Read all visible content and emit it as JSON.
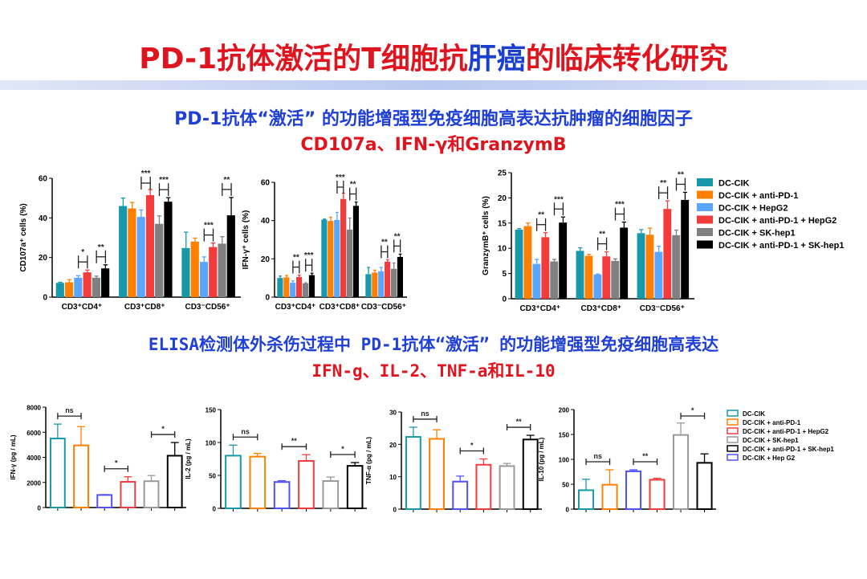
{
  "title": {
    "part1": "PD-1抗体激活的T细胞抗",
    "part2": "肝癌",
    "part3": "的临床转化研究"
  },
  "subtitle1": "PD-1抗体“激活” 的功能增强型免疫细胞高表达抗肿瘤的细胞因子",
  "subtitle2": "CD107a、IFN-γ和GranzymB",
  "subtitle3": "ELISA检测体外杀伤过程中 PD-1抗体“激活” 的功能增强型免疫细胞高表达",
  "subtitle4": "IFN-g、IL-2、TNF-a和IL-10",
  "colors": {
    "teal": "#1a98ab",
    "orange": "#ff8000",
    "lightblue": "#5aa6ff",
    "red": "#f23c3c",
    "gray": "#808080",
    "black": "#000000",
    "blue": "#5050ff"
  },
  "chart_data": [
    {
      "type": "bar",
      "ylabel": "CD107a⁺ cells (%)",
      "ylim": [
        0,
        60
      ],
      "yticks": [
        0,
        20,
        40,
        60
      ],
      "categories": [
        "CD3⁺CD4⁺",
        "CD3⁺CD8⁺",
        "CD3⁻CD56⁺"
      ],
      "style": "filled",
      "series": [
        {
          "color": "#1a98ab",
          "values": [
            7.2,
            46,
            24.8
          ],
          "errors": [
            0.3,
            4,
            8
          ]
        },
        {
          "color": "#ff8000",
          "values": [
            7.5,
            44.8,
            28
          ],
          "errors": [
            1.3,
            3,
            1.8
          ]
        },
        {
          "color": "#5aa6ff",
          "values": [
            9.8,
            40.5,
            17.8
          ],
          "errors": [
            1,
            3.5,
            2.5
          ]
        },
        {
          "color": "#f23c3c",
          "values": [
            12.5,
            51.5,
            25.3
          ],
          "errors": [
            1.2,
            2.8,
            2
          ]
        },
        {
          "color": "#808080",
          "values": [
            9.8,
            37,
            27
          ],
          "errors": [
            0.8,
            4,
            3.5
          ]
        },
        {
          "color": "#000000",
          "values": [
            14.5,
            48.2,
            41.3
          ],
          "errors": [
            1.8,
            2,
            9
          ]
        }
      ],
      "significance": [
        [
          "*",
          "**"
        ],
        [
          "***",
          "***"
        ],
        [
          "***",
          "**"
        ]
      ]
    },
    {
      "type": "bar",
      "ylabel": "IFN-γ⁺ cells (%)",
      "ylim": [
        0,
        60
      ],
      "yticks": [
        0,
        20,
        40,
        60
      ],
      "categories": [
        "CD3⁺CD4⁺",
        "CD3⁺CD8⁺",
        "CD3⁻CD56⁺"
      ],
      "style": "filled",
      "series": [
        {
          "color": "#1a98ab",
          "values": [
            10,
            40.5,
            12
          ],
          "errors": [
            1,
            0.3,
            3.5
          ]
        },
        {
          "color": "#ff8000",
          "values": [
            10.3,
            39.8,
            12.8
          ],
          "errors": [
            1,
            2,
            1.3
          ]
        },
        {
          "color": "#5aa6ff",
          "values": [
            7.5,
            40.3,
            13.5
          ],
          "errors": [
            1,
            4,
            2
          ]
        },
        {
          "color": "#f23c3c",
          "values": [
            10.5,
            51.3,
            18.5
          ],
          "errors": [
            1,
            3,
            1
          ]
        },
        {
          "color": "#808080",
          "values": [
            7.2,
            35.3,
            14.8
          ],
          "errors": [
            0.3,
            6,
            3
          ]
        },
        {
          "color": "#000000",
          "values": [
            11.5,
            47.7,
            21
          ],
          "errors": [
            1,
            2,
            1.5
          ]
        }
      ],
      "significance": [
        [
          "**",
          "***"
        ],
        [
          "***",
          "**"
        ],
        [
          "**",
          "**"
        ]
      ]
    },
    {
      "type": "bar",
      "ylabel": "GranzymB⁺ cells (%)",
      "ylim": [
        0,
        25
      ],
      "yticks": [
        0,
        5,
        10,
        15,
        20,
        25
      ],
      "categories": [
        "CD3⁺CD4⁺",
        "CD3⁺CD8⁺",
        "CD3⁻CD56⁺"
      ],
      "style": "filled",
      "series": [
        {
          "name": "DC-CIK",
          "color": "#1a98ab",
          "values": [
            13.7,
            9.5,
            13
          ],
          "errors": [
            0.2,
            0.6,
            0.7
          ]
        },
        {
          "name": "DC-CIK + anti-PD-1",
          "color": "#ff8000",
          "values": [
            14.4,
            8.5,
            12.7
          ],
          "errors": [
            0.6,
            0.3,
            1.3
          ]
        },
        {
          "name": "DC-CIK + HepG2",
          "color": "#5aa6ff",
          "values": [
            6.9,
            4.8,
            9.3
          ],
          "errors": [
            0.9,
            0.1,
            1.1
          ]
        },
        {
          "name": "DC-CIK + anti-PD-1 + HepG2",
          "color": "#f23c3c",
          "values": [
            12.2,
            8.4,
            17.8
          ],
          "errors": [
            0.9,
            0.9,
            1.6
          ]
        },
        {
          "name": "DC-CIK + SK-hep1",
          "color": "#808080",
          "values": [
            7.4,
            7.5,
            12.6
          ],
          "errors": [
            0.4,
            0.4,
            1
          ]
        },
        {
          "name": "DC-CIK + anti-PD-1 + SK-hep1",
          "color": "#000000",
          "values": [
            15.1,
            14.1,
            19.6
          ],
          "errors": [
            1.1,
            1.1,
            1.5
          ]
        }
      ],
      "significance": [
        [
          "**",
          "***"
        ],
        [
          "**",
          "***"
        ],
        [
          "**",
          "**"
        ]
      ],
      "legend": "right"
    },
    {
      "type": "bar",
      "ylabel": "IFN-γ (pg / mL)",
      "ylim": [
        0,
        8000
      ],
      "yticks": [
        0,
        2000,
        4000,
        6000,
        8000
      ],
      "style": "outline",
      "bars": [
        {
          "color": "#1a98ab",
          "value": 5500,
          "error": 1150
        },
        {
          "color": "#ff8000",
          "value": 4950,
          "error": 1500
        },
        {
          "color": "#5050ff",
          "value": 1000,
          "error": 30
        },
        {
          "color": "#f23c3c",
          "value": 2050,
          "error": 400
        },
        {
          "color": "#999999",
          "value": 2100,
          "error": 450
        },
        {
          "color": "#000000",
          "value": 4130,
          "error": 1050
        }
      ],
      "significance": [
        "ns",
        "*",
        "*"
      ]
    },
    {
      "type": "bar",
      "ylabel": "IL-2 (pg / mL)",
      "ylim": [
        0,
        150
      ],
      "yticks": [
        0,
        50,
        100,
        150
      ],
      "style": "outline",
      "bars": [
        {
          "color": "#1a98ab",
          "value": 80,
          "error": 16
        },
        {
          "color": "#ff8000",
          "value": 78.5,
          "error": 5
        },
        {
          "color": "#5050ff",
          "value": 40,
          "error": 2
        },
        {
          "color": "#f23c3c",
          "value": 72,
          "error": 9.5
        },
        {
          "color": "#999999",
          "value": 41.5,
          "error": 6
        },
        {
          "color": "#000000",
          "value": 64.5,
          "error": 5
        }
      ],
      "significance": [
        "ns",
        "**",
        "*"
      ]
    },
    {
      "type": "bar",
      "ylabel": "TNF-α (pg / mL)",
      "ylim": [
        0,
        30
      ],
      "yticks": [
        0,
        10,
        20,
        30
      ],
      "style": "outline",
      "bars": [
        {
          "color": "#1a98ab",
          "value": 22.3,
          "error": 3
        },
        {
          "color": "#ff8000",
          "value": 21.7,
          "error": 2.8
        },
        {
          "color": "#5050ff",
          "value": 8.5,
          "error": 1.7
        },
        {
          "color": "#f23c3c",
          "value": 13.7,
          "error": 1.8
        },
        {
          "color": "#999999",
          "value": 13.3,
          "error": 0.8
        },
        {
          "color": "#000000",
          "value": 21.5,
          "error": 1.3
        }
      ],
      "significance": [
        "ns",
        "*",
        "**"
      ]
    },
    {
      "type": "bar",
      "ylabel": "IL-10 (pg / mL)",
      "ylim": [
        0,
        200
      ],
      "yticks": [
        0,
        50,
        100,
        150,
        200
      ],
      "style": "outline",
      "bars": [
        {
          "color": "#1a98ab",
          "value": 38,
          "error": 22
        },
        {
          "color": "#ff8000",
          "value": 49,
          "error": 30
        },
        {
          "color": "#5050ff",
          "value": 76,
          "error": 3
        },
        {
          "color": "#f23c3c",
          "value": 59,
          "error": 3
        },
        {
          "color": "#999999",
          "value": 149,
          "error": 24
        },
        {
          "color": "#000000",
          "value": 93,
          "error": 18
        }
      ],
      "significance": [
        "ns",
        "**",
        "*"
      ],
      "legend_entries": [
        {
          "name": "DC-CIK",
          "color": "#1a98ab"
        },
        {
          "name": "DC-CIK + anti-PD-1",
          "color": "#ff8000"
        },
        {
          "name": "DC-CIK + anti-PD-1 + HepG2",
          "color": "#f23c3c"
        },
        {
          "name": "DC-CIK + SK-hep1",
          "color": "#999999"
        },
        {
          "name": "DC-CIK + anti-PD-1 + SK-hep1",
          "color": "#000000"
        },
        {
          "name": "DC-CIK + Hep G2",
          "color": "#5050ff"
        }
      ],
      "legend": "right"
    }
  ]
}
